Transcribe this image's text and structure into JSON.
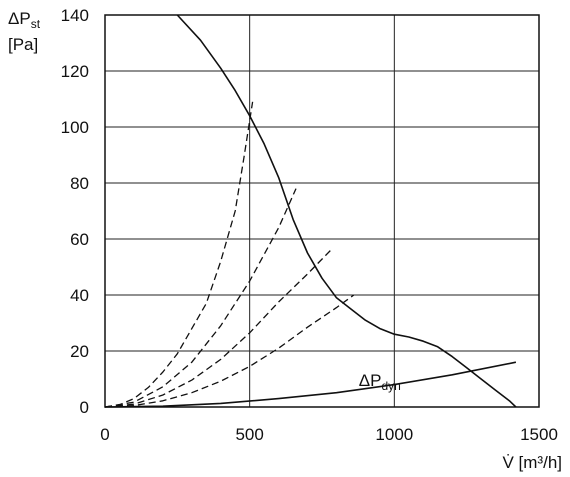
{
  "chart_data": {
    "type": "line",
    "title": "",
    "xlabel": "V̇ [m³/h]",
    "ylabel_main": "ΔP",
    "ylabel_sub": "st",
    "ylabel_unit": "[Pa]",
    "xlim": [
      0,
      1500
    ],
    "ylim": [
      0,
      140
    ],
    "x_ticks": [
      0,
      500,
      1000,
      1500
    ],
    "y_ticks": [
      0,
      20,
      40,
      60,
      80,
      100,
      120,
      140
    ],
    "grid": true,
    "annotations": [
      {
        "text_main": "ΔP",
        "text_sub": "dyn",
        "at_x": 1050,
        "at_y": 9
      }
    ],
    "series": [
      {
        "style": "solid",
        "points": [
          [
            250,
            140
          ],
          [
            330,
            131
          ],
          [
            400,
            121
          ],
          [
            450,
            113
          ],
          [
            500,
            104
          ],
          [
            550,
            94
          ],
          [
            600,
            82
          ],
          [
            650,
            67
          ],
          [
            700,
            55
          ],
          [
            750,
            46
          ],
          [
            800,
            39
          ],
          [
            850,
            35
          ],
          [
            900,
            31
          ],
          [
            950,
            28
          ],
          [
            1000,
            26
          ],
          [
            1050,
            25
          ],
          [
            1100,
            23.5
          ],
          [
            1150,
            21.5
          ],
          [
            1200,
            18
          ],
          [
            1250,
            14
          ],
          [
            1300,
            10
          ],
          [
            1350,
            6
          ],
          [
            1400,
            2
          ],
          [
            1420,
            0
          ]
        ]
      },
      {
        "style": "solid",
        "points": [
          [
            0,
            0
          ],
          [
            200,
            0.3
          ],
          [
            400,
            1.3
          ],
          [
            600,
            3
          ],
          [
            800,
            5.1
          ],
          [
            1000,
            8
          ],
          [
            1200,
            11.5
          ],
          [
            1420,
            16
          ]
        ]
      },
      {
        "style": "dashed",
        "points": [
          [
            0,
            0
          ],
          [
            50,
            0.8
          ],
          [
            100,
            3
          ],
          [
            150,
            7
          ],
          [
            200,
            12.5
          ],
          [
            250,
            19
          ],
          [
            300,
            28
          ],
          [
            350,
            37
          ],
          [
            400,
            52
          ],
          [
            450,
            70
          ],
          [
            480,
            89
          ],
          [
            510,
            109
          ]
        ]
      },
      {
        "style": "dashed",
        "points": [
          [
            0,
            0
          ],
          [
            100,
            1.7
          ],
          [
            200,
            7.2
          ],
          [
            300,
            16
          ],
          [
            400,
            29
          ],
          [
            500,
            45
          ],
          [
            600,
            64
          ],
          [
            660,
            78
          ]
        ]
      },
      {
        "style": "dashed",
        "points": [
          [
            0,
            0
          ],
          [
            100,
            1
          ],
          [
            200,
            4.3
          ],
          [
            300,
            9.6
          ],
          [
            400,
            17
          ],
          [
            500,
            26.5
          ],
          [
            600,
            37.5
          ],
          [
            700,
            47.5
          ],
          [
            780,
            56
          ]
        ]
      },
      {
        "style": "dashed",
        "points": [
          [
            0,
            0
          ],
          [
            100,
            0.5
          ],
          [
            200,
            2.2
          ],
          [
            300,
            5.1
          ],
          [
            400,
            9.2
          ],
          [
            500,
            14.5
          ],
          [
            600,
            21
          ],
          [
            700,
            28.5
          ],
          [
            800,
            35.5
          ],
          [
            860,
            40
          ]
        ]
      }
    ]
  }
}
